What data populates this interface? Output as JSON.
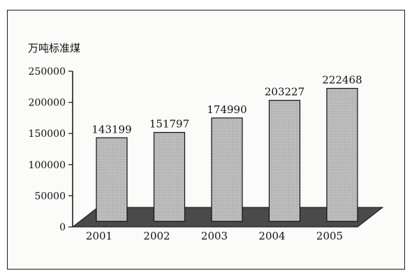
{
  "chart_data": {
    "type": "bar",
    "title": "",
    "ylabel": "万吨标准煤",
    "xlabel": "",
    "categories": [
      "2001",
      "2002",
      "2003",
      "2004",
      "2005"
    ],
    "values": [
      143199,
      151797,
      174990,
      203227,
      222468
    ],
    "yticks": [
      0,
      50000,
      100000,
      150000,
      200000,
      250000
    ],
    "ylim": [
      0,
      250000
    ],
    "grid": false,
    "legend": "none",
    "colors": {
      "bar": "#b8b8b8",
      "floor": "#4a4a4a",
      "text": "#111111"
    }
  }
}
